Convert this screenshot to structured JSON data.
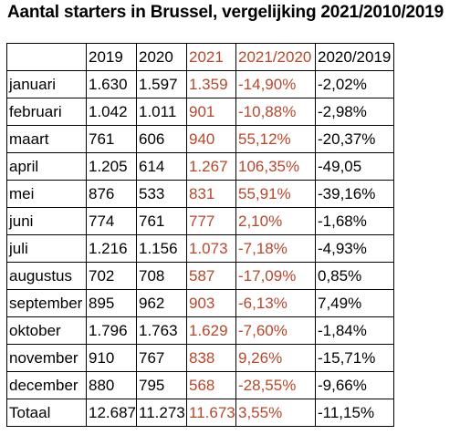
{
  "title": "Aantal starters in Brussel, vergelijking 2021/2010/2019",
  "colors": {
    "highlight_text": "#b7472a",
    "default_text": "#000000",
    "border": "#000000"
  },
  "table": {
    "headers": [
      "",
      "2019",
      "2020",
      "2021",
      "2021/2020",
      "2020/2019"
    ],
    "rows": [
      [
        "januari",
        "1.630",
        "1.597",
        "1.359",
        "-14,90%",
        "-2,02%"
      ],
      [
        "februari",
        "1.042",
        "1.011",
        "901",
        "-10,88%",
        "-2,98%"
      ],
      [
        "maart",
        "761",
        "606",
        "940",
        "55,12%",
        "-20,37%"
      ],
      [
        "april",
        "1.205",
        "614",
        "1.267",
        "106,35%",
        "-49,05"
      ],
      [
        "mei",
        "876",
        "533",
        "831",
        "55,91%",
        "-39,16%"
      ],
      [
        "juni",
        "774",
        "761",
        "777",
        "2,10%",
        "-1,68%"
      ],
      [
        "juli",
        "1.216",
        "1.156",
        "1.073",
        "-7,18%",
        "-4,93%"
      ],
      [
        "augustus",
        "702",
        "708",
        "587",
        "-17,09%",
        "0,85%"
      ],
      [
        "september",
        "895",
        "962",
        "903",
        "-6,13%",
        "7,49%"
      ],
      [
        "oktober",
        "1.796",
        "1.763",
        "1.629",
        "-7,60%",
        "-1,84%"
      ],
      [
        "november",
        "910",
        "767",
        "838",
        "9,26%",
        "-15,71%"
      ],
      [
        "december",
        "880",
        "795",
        "568",
        "-28,55%",
        "-9,66%"
      ],
      [
        "Totaal",
        "12.687",
        "11.273",
        "11.673",
        "3,55%",
        "-11,15%"
      ]
    ]
  }
}
